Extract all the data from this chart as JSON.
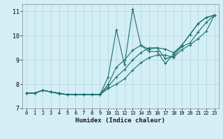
{
  "title": "",
  "xlabel": "Humidex (Indice chaleur)",
  "background_color": "#d4eef5",
  "grid_color": "#b8d8e0",
  "line_color": "#1a7070",
  "xlim": [
    -0.5,
    23.5
  ],
  "ylim": [
    7,
    11.3
  ],
  "xticks": [
    0,
    1,
    2,
    3,
    4,
    5,
    6,
    7,
    8,
    9,
    10,
    11,
    12,
    13,
    14,
    15,
    16,
    17,
    18,
    19,
    20,
    21,
    22,
    23
  ],
  "yticks": [
    7,
    8,
    9,
    10,
    11
  ],
  "series": [
    {
      "x": [
        0,
        1,
        2,
        3,
        4,
        5,
        6,
        7,
        8,
        9,
        10,
        11,
        12,
        13,
        14,
        15,
        16,
        17,
        18,
        19,
        20,
        21,
        22,
        23
      ],
      "y": [
        7.63,
        7.63,
        7.75,
        7.68,
        7.63,
        7.57,
        7.57,
        7.57,
        7.57,
        7.57,
        8.3,
        10.25,
        8.8,
        11.1,
        9.6,
        9.35,
        9.35,
        8.85,
        9.25,
        9.6,
        10.05,
        10.5,
        10.75,
        10.85
      ]
    },
    {
      "x": [
        0,
        1,
        2,
        3,
        4,
        5,
        6,
        7,
        8,
        9,
        10,
        11,
        12,
        13,
        14,
        15,
        16,
        17,
        18,
        19,
        20,
        21,
        22,
        23
      ],
      "y": [
        7.63,
        7.63,
        7.75,
        7.68,
        7.63,
        7.57,
        7.57,
        7.57,
        7.57,
        7.57,
        8.0,
        8.7,
        9.0,
        9.4,
        9.6,
        9.45,
        9.5,
        9.45,
        9.3,
        9.6,
        10.05,
        10.5,
        10.75,
        10.85
      ]
    },
    {
      "x": [
        0,
        1,
        2,
        3,
        4,
        5,
        6,
        7,
        8,
        9,
        10,
        11,
        12,
        13,
        14,
        15,
        16,
        17,
        18,
        19,
        20,
        21,
        22,
        23
      ],
      "y": [
        7.63,
        7.63,
        7.75,
        7.68,
        7.63,
        7.57,
        7.57,
        7.57,
        7.57,
        7.57,
        7.9,
        8.3,
        8.6,
        9.0,
        9.3,
        9.5,
        9.5,
        9.05,
        9.15,
        9.55,
        9.7,
        10.15,
        10.55,
        10.85
      ]
    },
    {
      "x": [
        0,
        1,
        2,
        3,
        4,
        5,
        6,
        7,
        8,
        9,
        10,
        11,
        12,
        13,
        14,
        15,
        16,
        17,
        18,
        19,
        20,
        21,
        22,
        23
      ],
      "y": [
        7.63,
        7.63,
        7.75,
        7.68,
        7.6,
        7.57,
        7.57,
        7.57,
        7.57,
        7.57,
        7.82,
        8.0,
        8.22,
        8.58,
        8.88,
        9.1,
        9.2,
        9.2,
        9.1,
        9.42,
        9.62,
        9.88,
        10.18,
        10.85
      ]
    }
  ]
}
